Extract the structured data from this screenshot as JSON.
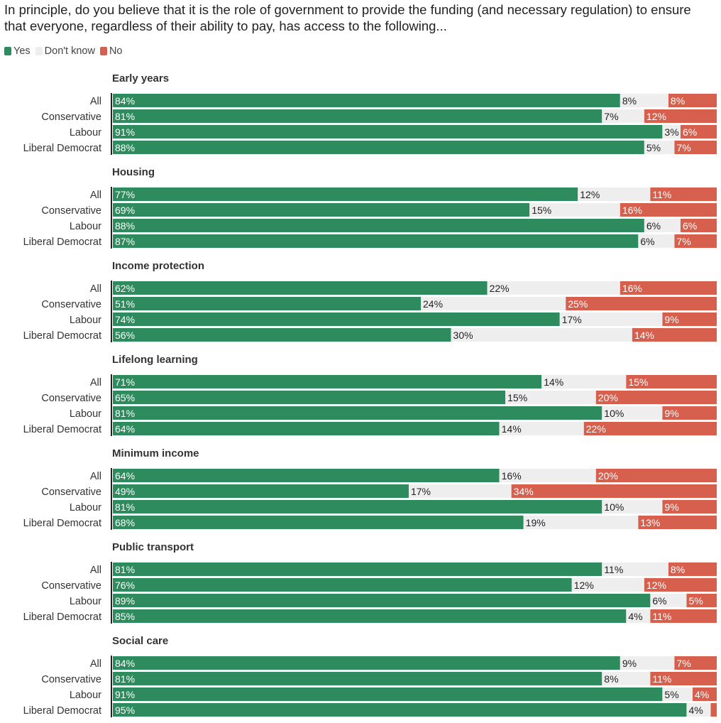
{
  "title": "In principle, do you believe that it is the role of government to provide the funding (and necessary regulation) to ensure that everyone, regardless of their ability to pay, has access to the following...",
  "colors": {
    "yes": "#2e8b5e",
    "dont_know": "#eeeeee",
    "no": "#d6604d",
    "axis": "#222222"
  },
  "legend": [
    {
      "label": "Yes",
      "color": "#2e8b5e"
    },
    {
      "label": "Don't know",
      "color": "#eeeeee"
    },
    {
      "label": "No",
      "color": "#d6604d"
    }
  ],
  "chart_data": {
    "type": "bar",
    "stacked": true,
    "orientation": "horizontal",
    "series_names": [
      "Yes",
      "Don't know",
      "No"
    ],
    "groups": [
      {
        "title": "Early years",
        "rows": [
          {
            "label": "All",
            "values": [
              84,
              8,
              8
            ]
          },
          {
            "label": "Conservative",
            "values": [
              81,
              7,
              12
            ]
          },
          {
            "label": "Labour",
            "values": [
              91,
              3,
              6
            ]
          },
          {
            "label": "Liberal Democrat",
            "values": [
              88,
              5,
              7
            ]
          }
        ]
      },
      {
        "title": "Housing",
        "rows": [
          {
            "label": "All",
            "values": [
              77,
              12,
              11
            ]
          },
          {
            "label": "Conservative",
            "values": [
              69,
              15,
              16
            ]
          },
          {
            "label": "Labour",
            "values": [
              88,
              6,
              6
            ]
          },
          {
            "label": "Liberal Democrat",
            "values": [
              87,
              6,
              7
            ]
          }
        ]
      },
      {
        "title": "Income protection",
        "rows": [
          {
            "label": "All",
            "values": [
              62,
              22,
              16
            ]
          },
          {
            "label": "Conservative",
            "values": [
              51,
              24,
              25
            ]
          },
          {
            "label": "Labour",
            "values": [
              74,
              17,
              9
            ]
          },
          {
            "label": "Liberal Democrat",
            "values": [
              56,
              30,
              14
            ]
          }
        ]
      },
      {
        "title": "Lifelong learning",
        "rows": [
          {
            "label": "All",
            "values": [
              71,
              14,
              15
            ]
          },
          {
            "label": "Conservative",
            "values": [
              65,
              15,
              20
            ]
          },
          {
            "label": "Labour",
            "values": [
              81,
              10,
              9
            ]
          },
          {
            "label": "Liberal Democrat",
            "values": [
              64,
              14,
              22
            ]
          }
        ]
      },
      {
        "title": "Minimum income",
        "rows": [
          {
            "label": "All",
            "values": [
              64,
              16,
              20
            ]
          },
          {
            "label": "Conservative",
            "values": [
              49,
              17,
              34
            ]
          },
          {
            "label": "Labour",
            "values": [
              81,
              10,
              9
            ]
          },
          {
            "label": "Liberal Democrat",
            "values": [
              68,
              19,
              13
            ]
          }
        ]
      },
      {
        "title": "Public transport",
        "rows": [
          {
            "label": "All",
            "values": [
              81,
              11,
              8
            ]
          },
          {
            "label": "Conservative",
            "values": [
              76,
              12,
              12
            ]
          },
          {
            "label": "Labour",
            "values": [
              89,
              6,
              5
            ]
          },
          {
            "label": "Liberal Democrat",
            "values": [
              85,
              4,
              11
            ]
          }
        ]
      },
      {
        "title": "Social care",
        "rows": [
          {
            "label": "All",
            "values": [
              84,
              9,
              7
            ]
          },
          {
            "label": "Conservative",
            "values": [
              81,
              8,
              11
            ]
          },
          {
            "label": "Labour",
            "values": [
              91,
              5,
              4
            ]
          },
          {
            "label": "Liberal Democrat",
            "values": [
              95,
              4,
              1
            ]
          }
        ]
      }
    ],
    "value_suffix": "%",
    "hidden_labels": [
      [
        6,
        3,
        2
      ]
    ]
  }
}
